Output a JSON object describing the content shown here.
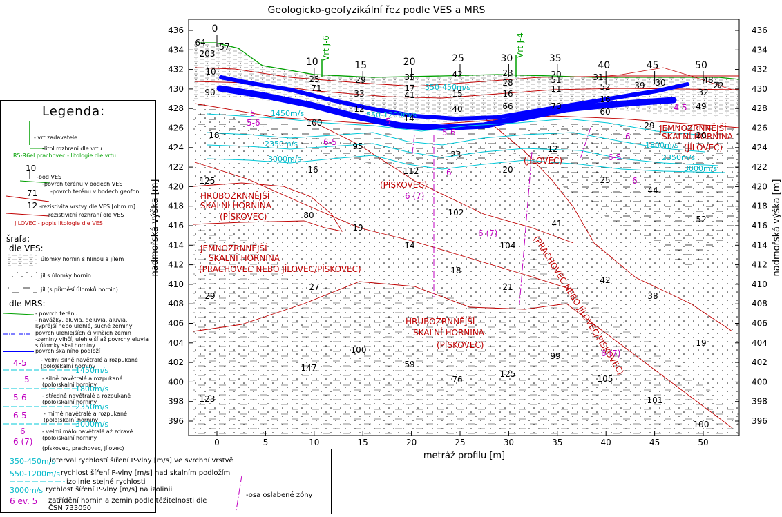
{
  "title": "Geologicko-geofyzikální řez podle VES a MRS",
  "y_axis_label": "nadmořská výška [m]",
  "x_axis_label": "metráž profilu [m]",
  "y_ticks": [
    "436",
    "434",
    "432",
    "430",
    "428",
    "426",
    "424",
    "422",
    "420",
    "418",
    "416",
    "414",
    "412",
    "410",
    "408",
    "406",
    "404",
    "402",
    "400",
    "398",
    "396"
  ],
  "x_ticks": [
    "0",
    "5",
    "10",
    "15",
    "20",
    "25",
    "30",
    "35",
    "40",
    "45",
    "50"
  ],
  "ves_labels": [
    "0",
    "10",
    "15",
    "20",
    "25",
    "30",
    "35",
    "40",
    "45",
    "50"
  ],
  "wells": [
    "Vrt J-6",
    "Vrt J-4"
  ],
  "units": {
    "u1": "HRUBOZRNNĚJŠÍ",
    "u1b": "SKALNÍ HORNINA",
    "u1c": "(PÍSKOVEC)",
    "u2": "JEMNOZRNNĚJŠÍ",
    "u2b": "SKALNÍ HORNINA",
    "u2c": "(PRACHOVEC NEBO JÍLOVEC/PÍSKOVEC)",
    "u3": "HRUBOZRNNĚJŠÍ",
    "u3b": "SKALNÍ HORNINA",
    "u3c": "(PÍSKOVEC)",
    "u4": "JEMNOZRNNĚJŠÍ",
    "u4b": "SKALNÍ HORNINA",
    "u4c": "(JÍLOVEC)",
    "u5": "(JÍLOVEC)",
    "u6": "(PÍSKOVEC)",
    "u7": "(PRACHOVEC NEBO JÍLOVEC/PÍSKOVEC)"
  },
  "velocities": [
    "1450m/s",
    "2350m/s",
    "3000m/s",
    "1800m/s",
    "2350m/s",
    "3000m/s",
    "350-450m/s",
    "550-1200m/s"
  ],
  "classes": [
    "5",
    "5-6",
    "6-5",
    "6",
    "6 (7)",
    "4-5",
    "6-5",
    "6",
    "6 (7)",
    "6 (7)",
    "6",
    "5-6",
    "5"
  ],
  "resistivities": [
    "203",
    "57",
    "64",
    "10",
    "90",
    "25",
    "71",
    "29",
    "33",
    "12",
    "35",
    "17",
    "41",
    "14",
    "42",
    "15",
    "40",
    "23",
    "28",
    "16",
    "66",
    "20",
    "51",
    "11",
    "70",
    "31",
    "52",
    "16",
    "60",
    "30",
    "39",
    "29",
    "48",
    "32",
    "22",
    "49",
    "20",
    "100",
    "18",
    "95",
    "16",
    "112",
    "23",
    "20",
    "12",
    "125",
    "25",
    "44",
    "80",
    "102",
    "19",
    "14",
    "104",
    "41",
    "52",
    "18",
    "21",
    "42",
    "38",
    "29",
    "27",
    "100",
    "59",
    "147",
    "76",
    "125",
    "99",
    "105",
    "19",
    "123",
    "101",
    "100",
    "1"
  ],
  "legend": {
    "title": "Legenda:",
    "items": [
      "- vrt zadavatele",
      "-litol.rozhraní dle vrtu",
      "R5-R6el.prachovec - litologie dle vrtu",
      "-bod VES",
      "-povrch terénu v bodech VES",
      "-povrch terénu v bodech geofon",
      "-rezistivita vrstvy dle VES [ohm.m]",
      "-rezistivitní rozhraní dle VES",
      "JÍLOVEC - popis litologie dle VES"
    ],
    "srafa": "šrafa:",
    "dle_ves": "dle VES:",
    "ves_items": [
      "úlomky hornin s hlínou a jílem",
      "jíl s úlomky hornin",
      "jíl (s příměsí úlomků hornin)"
    ],
    "dle_mrs": "dle MRS:",
    "mrs_items": [
      "- povrch terénu",
      "- navážky, eluvia, deluvia, aluvia, kyprější nebo ulehlé, suché zeminy",
      "povrch ulehlejších či vlhčích zemin",
      "-zeminy vlhčí, ulehlejší až povrchy eluvia s úlomky skal.horniny",
      "povrch skalního podloží"
    ],
    "classes": [
      {
        "code": "4-5",
        "text": "- velmi silně navětralé a rozpukané (polo)skalní horniny",
        "vel": "1450m/s"
      },
      {
        "code": "5",
        "text": "- silně navětralé a rozpukané (polo)skalní horniny",
        "vel": "1800m/s"
      },
      {
        "code": "5-6",
        "text": "- středně navětralé a rozpukané (polo)skalní horniny",
        "vel": "2350m/s"
      },
      {
        "code": "6-5",
        "text": "- mírně navětralé a rozpukané (polo)skalní horniny",
        "vel": "3000m/s"
      },
      {
        "code": "6",
        "text": "- velmi málo navětralé až zdravé (polo)skalní horniny",
        "vel": ""
      },
      {
        "code": "6 (7)",
        "text": "(pískovec, prachovec, jílovec)",
        "vel": ""
      }
    ]
  },
  "bottom_legend": [
    {
      "key": "350-450m/s",
      "text": "interval rychlostí šíření P-vlny [m/s] ve svrchní vrstvě"
    },
    {
      "key": "550-1200m/s",
      "text": "rychlost šíření P-vlny [m/s] nad skalním podložím"
    },
    {
      "key": "",
      "text": "izolinie stejné rychlosti"
    },
    {
      "key": "3000m/s",
      "text": "rychlost šíření P-vlny [m/s] na izolinii"
    },
    {
      "key": "6 ev. 5",
      "text": "zatřídění hornin a zemin podle těžitelnosti dle ČSN 733050"
    },
    {
      "key": "",
      "text": "-osa oslabené zóny"
    }
  ],
  "colors": {
    "terrain": "#00a000",
    "interface": "#cc0000",
    "bedrock": "#0000ff",
    "isoline": "#00c8d8",
    "zone": "#c000c0"
  }
}
